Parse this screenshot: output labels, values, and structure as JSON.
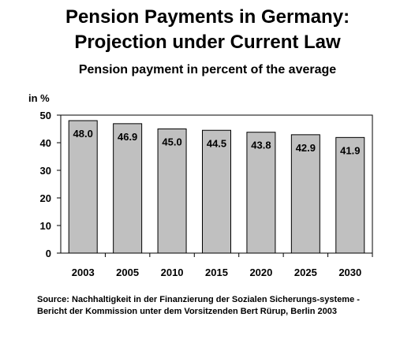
{
  "title_line1": "Pension Payments in Germany:",
  "title_line2": "Projection under Current Law",
  "subtitle": "Pension payment in percent of the average",
  "source": "Source: Nachhaltigkeit in der Finanzierung der Sozialen Sicherungs-systeme - Bericht der Kommission unter dem Vorsitzenden Bert Rürup, Berlin 2003",
  "chart_data": {
    "type": "bar",
    "categories": [
      "2003",
      "2005",
      "2010",
      "2015",
      "2020",
      "2025",
      "2030"
    ],
    "values": [
      48.0,
      46.9,
      45.0,
      44.5,
      43.8,
      42.9,
      41.9
    ],
    "data_labels": [
      "48.0",
      "46.9",
      "45.0",
      "44.5",
      "43.8",
      "42.9",
      "41.9"
    ],
    "ylabel": "in %",
    "ylim": [
      0,
      50
    ],
    "yticks": [
      0,
      10,
      20,
      30,
      40,
      50
    ],
    "grid": false,
    "bar_color": "#c0c0c0",
    "plot_background": "#ffffff"
  }
}
